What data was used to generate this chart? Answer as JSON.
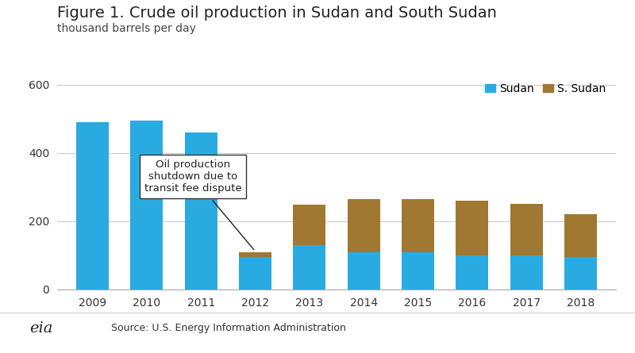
{
  "title": "Figure 1. Crude oil production in Sudan and South Sudan",
  "subtitle": "thousand barrels per day",
  "source": "Source: U.S. Energy Information Administration",
  "years": [
    2009,
    2010,
    2011,
    2012,
    2013,
    2014,
    2015,
    2016,
    2017,
    2018
  ],
  "sudan_values": [
    490,
    495,
    460,
    95,
    130,
    110,
    110,
    100,
    100,
    95
  ],
  "s_sudan_values": [
    0,
    0,
    0,
    15,
    118,
    155,
    155,
    160,
    150,
    125
  ],
  "sudan_color": "#29ABE2",
  "s_sudan_color": "#A07832",
  "annotation_text": "Oil production\nshutdown due to\ntransit fee dispute",
  "ylim": [
    0,
    620
  ],
  "yticks": [
    0,
    200,
    400,
    600
  ],
  "bg_color": "#FFFFFF",
  "grid_color": "#CCCCCC",
  "title_fontsize": 14,
  "subtitle_fontsize": 10,
  "tick_fontsize": 10,
  "legend_fontsize": 10,
  "bar_width": 0.6
}
